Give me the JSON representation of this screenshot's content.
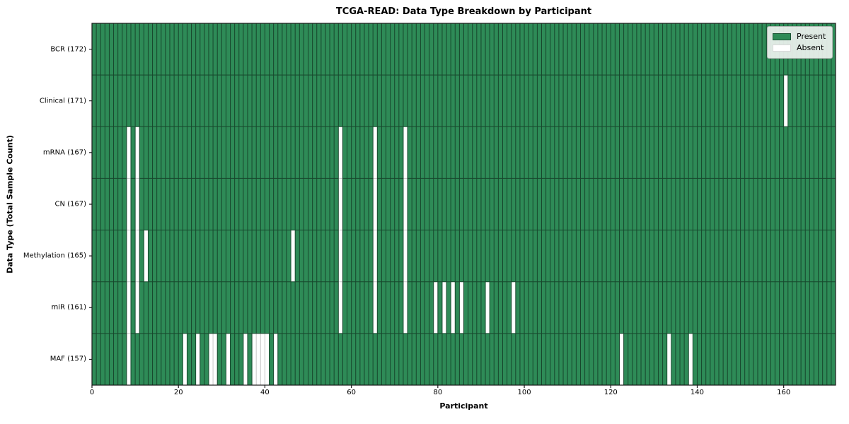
{
  "chart_data": {
    "type": "heatmap",
    "title": "TCGA-READ: Data Type Breakdown by Participant",
    "xlabel": "Participant",
    "ylabel": "Data Type (Total Sample Count)",
    "n_participants": 172,
    "x_ticks": [
      0,
      20,
      40,
      60,
      80,
      100,
      120,
      140,
      160
    ],
    "rows": [
      {
        "label": "BCR (172)",
        "name": "BCR",
        "total": 172,
        "absent": []
      },
      {
        "label": "Clinical (171)",
        "name": "Clinical",
        "total": 171,
        "absent": [
          160
        ]
      },
      {
        "label": "mRNA (167)",
        "name": "mRNA",
        "total": 167,
        "absent": [
          8,
          10,
          57,
          65,
          72
        ]
      },
      {
        "label": "CN (167)",
        "name": "CN",
        "total": 167,
        "absent": [
          8,
          10,
          57,
          65,
          72
        ]
      },
      {
        "label": "Methylation (165)",
        "name": "Methylation",
        "total": 165,
        "absent": [
          8,
          10,
          12,
          46,
          57,
          65,
          72
        ]
      },
      {
        "label": "miR (161)",
        "name": "miR",
        "total": 161,
        "absent": [
          8,
          10,
          57,
          65,
          72,
          79,
          81,
          83,
          85,
          91,
          97
        ]
      },
      {
        "label": "MAF (157)",
        "name": "MAF",
        "total": 157,
        "absent": [
          8,
          21,
          24,
          27,
          28,
          31,
          35,
          37,
          38,
          39,
          40,
          42,
          122,
          133,
          138
        ]
      }
    ],
    "legend": {
      "position": "upper right",
      "present_label": "Present",
      "absent_label": "Absent"
    },
    "colors": {
      "present": "#2e8b57",
      "absent": "#ffffff",
      "edge_on_green": "#17462c",
      "edge_on_white": "#c7c7c7",
      "spine": "#1a1a1a"
    },
    "grid": true
  }
}
